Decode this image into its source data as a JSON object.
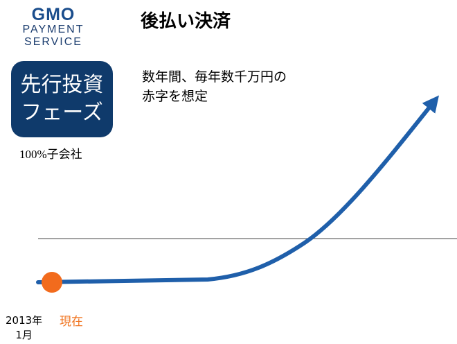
{
  "logo": {
    "brand": "GMO",
    "line1": "PAYMENT",
    "line2": "SERVICE",
    "brand_color": "#1a4d8c"
  },
  "title": "後払い決済",
  "phase_badge": {
    "line1": "先行投資",
    "line2": "フェーズ",
    "background": "#0f3a6b"
  },
  "subsidiary_label": "100%子会社",
  "note": {
    "line1": "数年間、毎年数千万円の",
    "line2": "赤字を想定"
  },
  "timeline": {
    "start_date_line1": "2013年",
    "start_date_line2": "1月",
    "now_label": "現在",
    "curve_color": "#1f5faa",
    "marker_color": "#f26b1d"
  }
}
